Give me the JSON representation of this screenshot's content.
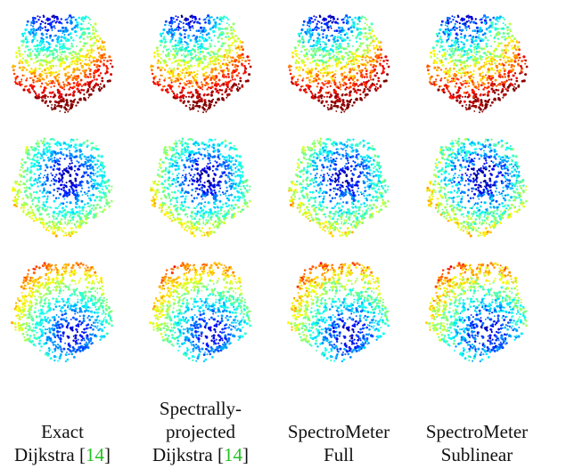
{
  "figure": {
    "rows": 3,
    "colormap": "jet",
    "columns": [
      {
        "caption_lines": [
          {
            "text": "Exact"
          },
          {
            "text": "Dijkstra [",
            "ref": "14",
            "suffix": "]"
          }
        ]
      },
      {
        "caption_lines": [
          {
            "text": "Spectrally-"
          },
          {
            "text": "projected"
          },
          {
            "text": "Dijkstra [",
            "ref": "14",
            "suffix": "]"
          }
        ]
      },
      {
        "caption_lines": [
          {
            "text": "SpectroMeter"
          },
          {
            "text": "Full"
          }
        ]
      },
      {
        "caption_lines": [
          {
            "text": "SpectroMeter"
          },
          {
            "text": "Sublinear"
          }
        ]
      }
    ],
    "ref_color": "#22c022"
  }
}
